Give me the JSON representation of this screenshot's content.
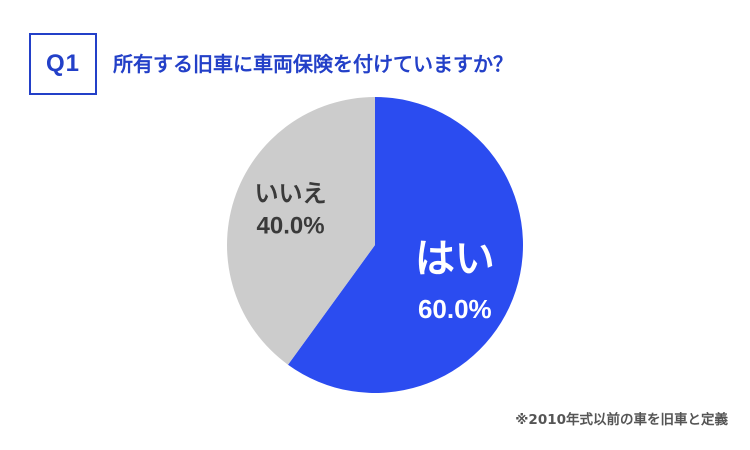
{
  "question": {
    "badge": "Q1",
    "text": "所有する旧車に車両保険を付けていますか？"
  },
  "chart_data": {
    "type": "pie",
    "slices": [
      {
        "label": "はい",
        "value": 60.0,
        "value_label": "60.0%",
        "color": "#2b4cf0",
        "text_color": "#ffffff"
      },
      {
        "label": "いいえ",
        "value": 40.0,
        "value_label": "40.0%",
        "color": "#cccccc",
        "text_color": "#3a3a3a"
      }
    ]
  },
  "footnote": "※2010年式以前の車を旧車と定義",
  "colors": {
    "accent": "#2340c8",
    "yes": "#2b4cf0",
    "no": "#cccccc"
  }
}
